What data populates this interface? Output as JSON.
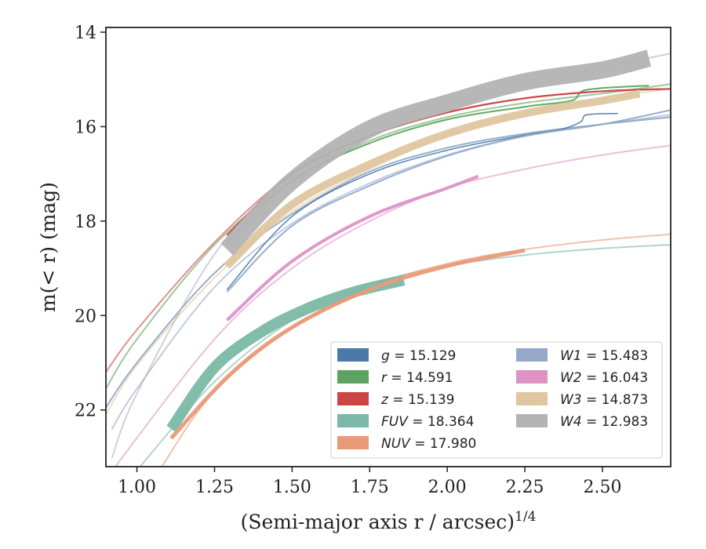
{
  "chart_data": {
    "type": "line",
    "xlabel": "(Semi-major axis r / arcsec)",
    "xlabel_sup": "1/4",
    "ylabel": "m(< r) (mag)",
    "xlim": [
      0.9,
      2.72
    ],
    "ylim": [
      23.2,
      13.9
    ],
    "y_inverted": true,
    "x_ticks": [
      "1.00",
      "1.25",
      "1.50",
      "1.75",
      "2.00",
      "2.25",
      "2.50"
    ],
    "x_tick_values": [
      1.0,
      1.25,
      1.5,
      1.75,
      2.0,
      2.25,
      2.5
    ],
    "y_ticks": [
      "14",
      "16",
      "18",
      "20",
      "22"
    ],
    "y_tick_values": [
      14,
      16,
      18,
      20,
      22
    ],
    "grid": false,
    "legend_position": "lower-right",
    "legend_columns": 2,
    "series": [
      {
        "name": "g = 15.129",
        "band": "g",
        "value": "15.129",
        "color": "#4c7aa8",
        "fit": [
          [
            0.9,
            21.95
          ],
          [
            1.0,
            21.0
          ],
          [
            1.25,
            19.1
          ],
          [
            1.5,
            17.85
          ],
          [
            1.75,
            16.95
          ],
          [
            2.0,
            16.45
          ],
          [
            2.25,
            16.15
          ],
          [
            2.5,
            15.95
          ],
          [
            2.72,
            15.8
          ]
        ],
        "data": [
          [
            1.29,
            19.45
          ],
          [
            1.5,
            17.9
          ],
          [
            1.75,
            17.0
          ],
          [
            2.0,
            16.5
          ],
          [
            2.25,
            16.18
          ],
          [
            2.37,
            16.05
          ],
          [
            2.43,
            15.9
          ],
          [
            2.45,
            15.75
          ],
          [
            2.55,
            15.72
          ]
        ],
        "band_width": 1.5
      },
      {
        "name": "r = 14.591",
        "band": "r",
        "value": "14.591",
        "color": "#5ba35e",
        "fit": [
          [
            0.9,
            21.55
          ],
          [
            1.0,
            20.5
          ],
          [
            1.25,
            18.5
          ],
          [
            1.5,
            17.15
          ],
          [
            1.75,
            16.3
          ],
          [
            2.0,
            15.8
          ],
          [
            2.25,
            15.5
          ],
          [
            2.5,
            15.3
          ],
          [
            2.72,
            15.1
          ]
        ],
        "data": [
          [
            1.29,
            18.45
          ],
          [
            1.5,
            17.15
          ],
          [
            1.75,
            16.35
          ],
          [
            2.0,
            15.85
          ],
          [
            2.25,
            15.58
          ],
          [
            2.4,
            15.45
          ],
          [
            2.45,
            15.22
          ],
          [
            2.65,
            15.13
          ]
        ],
        "band_width": 2.0
      },
      {
        "name": "z = 15.139",
        "band": "z",
        "value": "15.139",
        "color": "#cc4444",
        "fit": [
          [
            0.9,
            21.2
          ],
          [
            1.0,
            20.3
          ],
          [
            1.25,
            18.45
          ],
          [
            1.5,
            17.0
          ],
          [
            1.75,
            16.2
          ],
          [
            2.0,
            15.7
          ],
          [
            2.25,
            15.4
          ],
          [
            2.5,
            15.25
          ],
          [
            2.72,
            15.2
          ]
        ],
        "data": [
          [
            1.29,
            18.3
          ],
          [
            1.5,
            17.0
          ],
          [
            1.75,
            16.2
          ],
          [
            2.0,
            15.7
          ],
          [
            2.25,
            15.4
          ],
          [
            2.5,
            15.25
          ],
          [
            2.72,
            15.2
          ]
        ],
        "band_width": 2.2
      },
      {
        "name": "FUV = 18.364",
        "band": "FUV",
        "value": "18.364",
        "color": "#7bb9a6",
        "fit": [
          [
            1.01,
            23.2
          ],
          [
            1.25,
            21.4
          ],
          [
            1.5,
            20.1
          ],
          [
            1.75,
            19.35
          ],
          [
            2.0,
            18.95
          ],
          [
            2.25,
            18.72
          ],
          [
            2.5,
            18.58
          ],
          [
            2.72,
            18.5
          ]
        ],
        "data": [
          [
            1.11,
            22.4
          ],
          [
            1.25,
            21.1
          ],
          [
            1.4,
            20.35
          ],
          [
            1.55,
            19.85
          ],
          [
            1.7,
            19.5
          ],
          [
            1.86,
            19.25
          ]
        ],
        "band_width": 14
      },
      {
        "name": "NUV = 17.980",
        "band": "NUV",
        "value": "17.980",
        "color": "#e99a77",
        "fit": [
          [
            1.08,
            23.2
          ],
          [
            1.25,
            21.6
          ],
          [
            1.5,
            20.25
          ],
          [
            1.75,
            19.4
          ],
          [
            2.0,
            18.9
          ],
          [
            2.25,
            18.6
          ],
          [
            2.5,
            18.4
          ],
          [
            2.72,
            18.28
          ]
        ],
        "data": [
          [
            1.11,
            22.6
          ],
          [
            1.3,
            21.25
          ],
          [
            1.5,
            20.25
          ],
          [
            1.75,
            19.45
          ],
          [
            2.0,
            18.95
          ],
          [
            2.25,
            18.62
          ]
        ],
        "band_width": 5
      },
      {
        "name": "W1 = 15.483",
        "band": "W1",
        "value": "15.483",
        "color": "#95a8c9",
        "fit": [
          [
            0.92,
            22.4
          ],
          [
            1.0,
            21.55
          ],
          [
            1.25,
            19.4
          ],
          [
            1.5,
            18.05
          ],
          [
            1.75,
            17.2
          ],
          [
            2.0,
            16.6
          ],
          [
            2.25,
            16.2
          ],
          [
            2.5,
            15.95
          ],
          [
            2.72,
            15.75
          ]
        ],
        "data": [
          [
            1.29,
            19.5
          ],
          [
            1.5,
            18.1
          ],
          [
            1.75,
            17.25
          ],
          [
            2.0,
            16.62
          ],
          [
            2.25,
            16.2
          ],
          [
            2.5,
            15.95
          ],
          [
            2.72,
            15.65
          ]
        ],
        "band_width": 2.0
      },
      {
        "name": "W2 = 16.043",
        "band": "W2",
        "value": "16.043",
        "color": "#dd94c5",
        "fit": [
          [
            0.93,
            23.2
          ],
          [
            1.25,
            20.5
          ],
          [
            1.5,
            19.0
          ],
          [
            1.75,
            18.0
          ],
          [
            2.0,
            17.3
          ],
          [
            2.25,
            16.9
          ],
          [
            2.5,
            16.6
          ],
          [
            2.72,
            16.4
          ]
        ],
        "data": [
          [
            1.29,
            20.1
          ],
          [
            1.5,
            18.85
          ],
          [
            1.75,
            17.9
          ],
          [
            2.0,
            17.3
          ],
          [
            2.1,
            17.05
          ]
        ],
        "band_width": 4
      },
      {
        "name": "W3 = 14.873",
        "band": "W3",
        "value": "14.873",
        "color": "#e0c6a0",
        "fit": [
          [
            0.9,
            22.1
          ],
          [
            1.0,
            21.05
          ],
          [
            1.25,
            19.2
          ],
          [
            1.5,
            17.8
          ],
          [
            1.75,
            16.9
          ],
          [
            2.0,
            16.2
          ],
          [
            2.25,
            15.75
          ],
          [
            2.5,
            15.4
          ],
          [
            2.72,
            15.2
          ]
        ],
        "data": [
          [
            1.29,
            18.95
          ],
          [
            1.5,
            17.65
          ],
          [
            1.75,
            16.8
          ],
          [
            2.0,
            16.15
          ],
          [
            2.25,
            15.72
          ],
          [
            2.5,
            15.45
          ],
          [
            2.62,
            15.3
          ]
        ],
        "band_width": 10
      },
      {
        "name": "W4 = 12.983",
        "band": "W4",
        "value": "12.983",
        "color": "#b3b3b3",
        "fit": [
          [
            0.92,
            23.0
          ],
          [
            1.0,
            21.65
          ],
          [
            1.25,
            18.7
          ],
          [
            1.5,
            17.0
          ],
          [
            1.75,
            16.0
          ],
          [
            2.0,
            15.45
          ],
          [
            2.25,
            15.05
          ],
          [
            2.5,
            14.75
          ],
          [
            2.72,
            14.45
          ]
        ],
        "data": [
          [
            1.29,
            18.6
          ],
          [
            1.5,
            17.15
          ],
          [
            1.75,
            16.05
          ],
          [
            2.0,
            15.5
          ],
          [
            2.25,
            15.05
          ],
          [
            2.5,
            14.8
          ],
          [
            2.65,
            14.55
          ]
        ],
        "band_width": 22
      }
    ]
  }
}
